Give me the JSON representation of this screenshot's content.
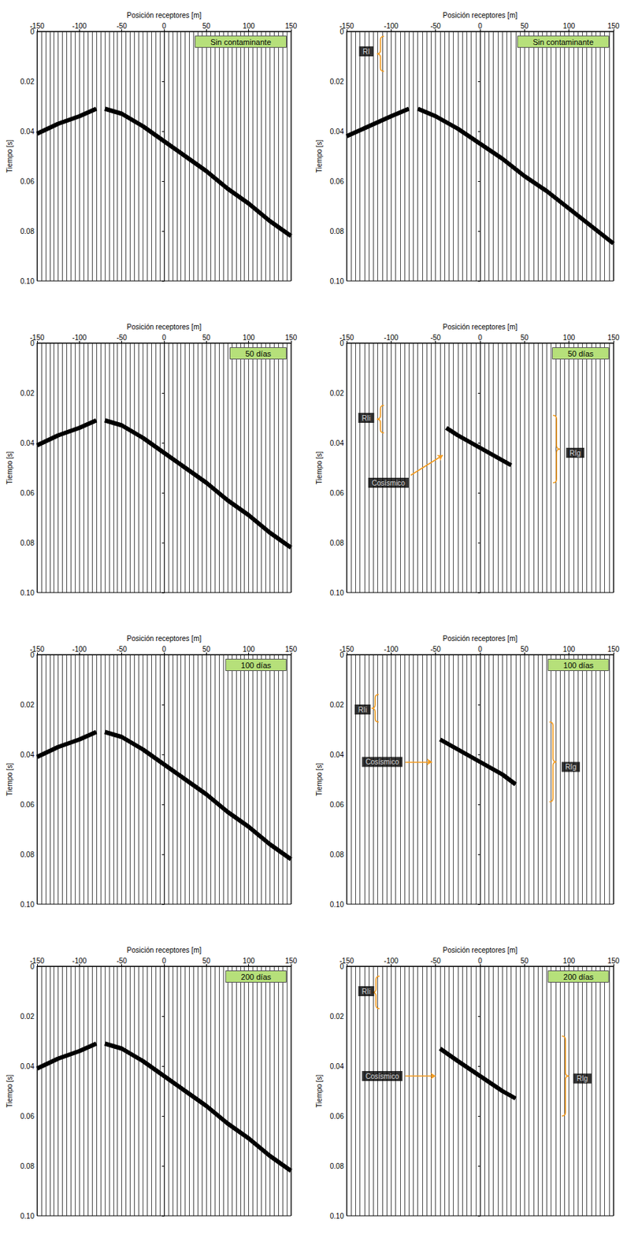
{
  "chart_data": [
    {
      "type": "line",
      "title": "Sin contaminante",
      "x_label": "Posición receptores [m]",
      "y_label": "Tiempo [s]",
      "xlim": [
        -150,
        150
      ],
      "xticks": [
        -150,
        -100,
        -50,
        0,
        50,
        100,
        150
      ],
      "ylim": [
        0,
        0.1
      ],
      "yticks": [
        0,
        0.02,
        0.04,
        0.06,
        0.08,
        {
          "value": 0.1,
          "label": "0.10"
        }
      ],
      "grid": true,
      "series": [
        {
          "color": "#000000",
          "x": [
            -150,
            -125,
            -100,
            -80,
            -75,
            -70,
            -50,
            -25,
            0,
            25,
            50,
            75,
            100,
            125,
            150
          ],
          "values": [
            0.041,
            0.037,
            0.034,
            0.031,
            null,
            0.031,
            0.033,
            0.038,
            0.044,
            0.05,
            0.056,
            0.063,
            0.069,
            0.076,
            0.082
          ]
        }
      ],
      "annotations": []
    },
    {
      "type": "line",
      "title": "Sin contaminante",
      "x_label": "Posición receptores [m]",
      "y_label": "Tiempo [s]",
      "xlim": [
        -150,
        150
      ],
      "xticks": [
        -150,
        -100,
        -50,
        0,
        50,
        100,
        150
      ],
      "ylim": [
        0,
        0.1
      ],
      "yticks": [
        0,
        0.02,
        0.04,
        0.06,
        0.08,
        {
          "value": 0.1,
          "label": "0.10"
        }
      ],
      "grid": true,
      "series": [
        {
          "color": "#000000",
          "x": [
            -150,
            -125,
            -100,
            -80,
            -75,
            -70,
            -50,
            -25,
            0,
            25,
            50,
            75,
            100,
            125,
            150
          ],
          "values": [
            0.042,
            0.038,
            0.034,
            0.031,
            null,
            0.031,
            0.034,
            0.039,
            0.045,
            0.051,
            0.058,
            0.064,
            0.071,
            0.078,
            0.085
          ]
        }
      ],
      "annotations": [
        {
          "text": "RI",
          "x": -128,
          "y": 0.008,
          "bracket": {
            "x": -108,
            "y0": 0.002,
            "y1": 0.016
          }
        }
      ]
    },
    {
      "type": "line",
      "title": "50 días",
      "x_label": "Posición receptores [m]",
      "y_label": "Tiempo [s]",
      "xlim": [
        -150,
        150
      ],
      "xticks": [
        -150,
        -100,
        -50,
        0,
        50,
        100,
        150
      ],
      "ylim": [
        0,
        0.1
      ],
      "yticks": [
        0,
        0.02,
        0.04,
        0.06,
        0.08,
        {
          "value": 0.1,
          "label": "0.10"
        }
      ],
      "grid": true,
      "series": [
        {
          "color": "#000000",
          "x": [
            -150,
            -125,
            -100,
            -80,
            -75,
            -70,
            -50,
            -25,
            0,
            25,
            50,
            75,
            100,
            125,
            150
          ],
          "values": [
            0.041,
            0.037,
            0.034,
            0.031,
            null,
            0.031,
            0.033,
            0.038,
            0.044,
            0.05,
            0.056,
            0.063,
            0.069,
            0.076,
            0.082
          ]
        }
      ],
      "annotations": []
    },
    {
      "type": "line",
      "title": "50 días",
      "x_label": "Posición receptores [m]",
      "y_label": "Tiempo [s]",
      "xlim": [
        -150,
        150
      ],
      "xticks": [
        -150,
        -100,
        -50,
        0,
        50,
        100,
        150
      ],
      "ylim": [
        0,
        0.1
      ],
      "yticks": [
        0,
        0.02,
        0.04,
        0.06,
        0.08,
        {
          "value": 0.1,
          "label": "0.10"
        }
      ],
      "grid": true,
      "series": [
        {
          "color": "#000000",
          "x": [
            -38,
            -25,
            0,
            25,
            35
          ],
          "values": [
            0.034,
            0.037,
            0.042,
            0.047,
            0.049
          ]
        }
      ],
      "annotations": [
        {
          "text": "RIi",
          "x": -128,
          "y": 0.03,
          "bracket": {
            "x": -108,
            "y0": 0.025,
            "y1": 0.036
          }
        },
        {
          "text": "Cosísmico",
          "x": -103,
          "y": 0.056,
          "arrow": {
            "from": [
              -78,
              0.053
            ],
            "to": [
              -42,
              0.045
            ]
          }
        },
        {
          "text": "RIg",
          "x": 107,
          "y": 0.044,
          "bracket": {
            "x": 82,
            "y0": 0.029,
            "y1": 0.056
          }
        }
      ]
    },
    {
      "type": "line",
      "title": "100 días",
      "x_label": "Posición receptores [m]",
      "y_label": "Tiempo [s]",
      "xlim": [
        -150,
        150
      ],
      "xticks": [
        -150,
        -100,
        -50,
        0,
        50,
        100,
        150
      ],
      "ylim": [
        0,
        0.1
      ],
      "yticks": [
        0,
        0.02,
        0.04,
        0.06,
        0.08,
        {
          "value": 0.1,
          "label": "0.10"
        }
      ],
      "grid": true,
      "series": [
        {
          "color": "#000000",
          "x": [
            -150,
            -125,
            -100,
            -80,
            -75,
            -70,
            -50,
            -25,
            0,
            25,
            50,
            75,
            100,
            125,
            150
          ],
          "values": [
            0.041,
            0.037,
            0.034,
            0.031,
            null,
            0.031,
            0.033,
            0.038,
            0.044,
            0.05,
            0.056,
            0.063,
            0.069,
            0.076,
            0.082
          ]
        }
      ],
      "annotations": []
    },
    {
      "type": "line",
      "title": "100 días",
      "x_label": "Posición receptores [m]",
      "y_label": "Tiempo [s]",
      "xlim": [
        -150,
        150
      ],
      "xticks": [
        -150,
        -100,
        -50,
        0,
        50,
        100,
        150
      ],
      "ylim": [
        0,
        0.1
      ],
      "yticks": [
        0,
        0.02,
        0.04,
        0.06,
        0.08,
        {
          "value": 0.1,
          "label": "0.10"
        }
      ],
      "grid": true,
      "series": [
        {
          "color": "#000000",
          "x": [
            -45,
            -25,
            0,
            25,
            40
          ],
          "values": [
            0.034,
            0.038,
            0.043,
            0.048,
            0.052
          ]
        }
      ],
      "annotations": [
        {
          "text": "RIi",
          "x": -132,
          "y": 0.022,
          "bracket": {
            "x": -114,
            "y0": 0.016,
            "y1": 0.027
          }
        },
        {
          "text": "Cosísmico",
          "x": -110,
          "y": 0.043,
          "arrow": {
            "from": [
              -84,
              0.043
            ],
            "to": [
              -54,
              0.043
            ]
          }
        },
        {
          "text": "RIg",
          "x": 102,
          "y": 0.045,
          "bracket": {
            "x": 78,
            "y0": 0.027,
            "y1": 0.059
          }
        }
      ]
    },
    {
      "type": "line",
      "title": "200 días",
      "x_label": "Posición receptores [m]",
      "y_label": "Tiempo [s]",
      "xlim": [
        -150,
        150
      ],
      "xticks": [
        -150,
        -100,
        -50,
        0,
        50,
        100,
        150
      ],
      "ylim": [
        0,
        0.1
      ],
      "yticks": [
        0,
        0.02,
        0.04,
        0.06,
        0.08,
        {
          "value": 0.1,
          "label": "0.10"
        }
      ],
      "grid": true,
      "series": [
        {
          "color": "#000000",
          "x": [
            -150,
            -125,
            -100,
            -80,
            -75,
            -70,
            -50,
            -25,
            0,
            25,
            50,
            75,
            100,
            125,
            150
          ],
          "values": [
            0.041,
            0.037,
            0.034,
            0.031,
            null,
            0.031,
            0.033,
            0.038,
            0.044,
            0.05,
            0.056,
            0.063,
            0.069,
            0.076,
            0.082
          ]
        }
      ],
      "annotations": []
    },
    {
      "type": "line",
      "title": "200 días",
      "x_label": "Posición receptores [m]",
      "y_label": "Tiempo [s]",
      "xlim": [
        -150,
        150
      ],
      "xticks": [
        -150,
        -100,
        -50,
        0,
        50,
        100,
        150
      ],
      "ylim": [
        0,
        0.1
      ],
      "yticks": [
        0,
        0.02,
        0.04,
        0.06,
        0.08,
        {
          "value": 0.1,
          "label": "0.10"
        }
      ],
      "grid": true,
      "series": [
        {
          "color": "#000000",
          "x": [
            -45,
            -25,
            0,
            25,
            40
          ],
          "values": [
            0.033,
            0.038,
            0.044,
            0.05,
            0.053
          ]
        }
      ],
      "annotations": [
        {
          "text": "RIi",
          "x": -128,
          "y": 0.01,
          "bracket": {
            "x": -113,
            "y0": 0.004,
            "y1": 0.017
          }
        },
        {
          "text": "Cosísmico",
          "x": -110,
          "y": 0.044,
          "arrow": {
            "from": [
              -84,
              0.044
            ],
            "to": [
              -50,
              0.044
            ]
          }
        },
        {
          "text": "RIg",
          "x": 115,
          "y": 0.045,
          "bracket": {
            "x": 92,
            "y0": 0.028,
            "y1": 0.06
          }
        }
      ]
    }
  ]
}
